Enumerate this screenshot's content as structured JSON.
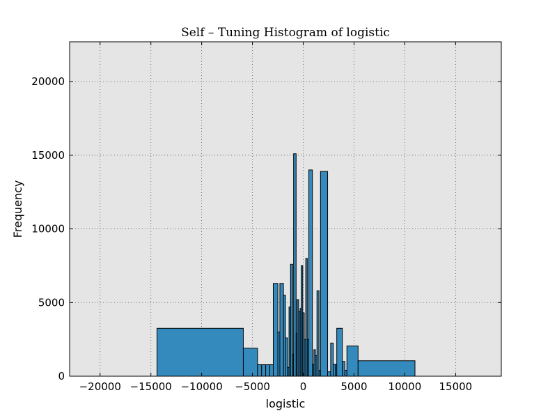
{
  "chart_data": {
    "type": "bar",
    "title": "Self – Tuning Histogram of logistic",
    "xlabel": "logistic",
    "ylabel": "Frequency",
    "xlim": [
      -23000,
      19500
    ],
    "ylim": [
      0,
      22700
    ],
    "xticks": [
      -20000,
      -15000,
      -10000,
      -5000,
      0,
      5000,
      10000,
      15000
    ],
    "xtick_labels": [
      "−20000",
      "−15000",
      "−10000",
      "−5000",
      "0",
      "5000",
      "10000",
      "15000"
    ],
    "yticks": [
      0,
      5000,
      10000,
      15000,
      20000
    ],
    "ytick_labels": [
      "0",
      "5000",
      "10000",
      "15000",
      "20000"
    ],
    "grid": true,
    "colors": {
      "bar_fill": "#348abd",
      "bar_edge": "#000000",
      "plot_bg": "#e5e5e5",
      "grid": "#555555"
    },
    "bins": [
      {
        "x0": -14400,
        "x1": -5900,
        "count": 3250
      },
      {
        "x0": -5900,
        "x1": -4500,
        "count": 1900
      },
      {
        "x0": -4500,
        "x1": -4100,
        "count": 780
      },
      {
        "x0": -4100,
        "x1": -3700,
        "count": 780
      },
      {
        "x0": -3700,
        "x1": -3300,
        "count": 780
      },
      {
        "x0": -3300,
        "x1": -2950,
        "count": 780
      },
      {
        "x0": -2950,
        "x1": -2500,
        "count": 6300
      },
      {
        "x0": -2500,
        "x1": -2300,
        "count": 3000
      },
      {
        "x0": -2300,
        "x1": -1950,
        "count": 6300
      },
      {
        "x0": -1950,
        "x1": -1750,
        "count": 5500
      },
      {
        "x0": -1750,
        "x1": -1550,
        "count": 2600
      },
      {
        "x0": -1550,
        "x1": -1400,
        "count": 600
      },
      {
        "x0": -1400,
        "x1": -1250,
        "count": 4700
      },
      {
        "x0": -1250,
        "x1": -1050,
        "count": 7600
      },
      {
        "x0": -1050,
        "x1": -950,
        "count": 1500
      },
      {
        "x0": -950,
        "x1": -700,
        "count": 15100
      },
      {
        "x0": -700,
        "x1": -600,
        "count": 2900
      },
      {
        "x0": -600,
        "x1": -450,
        "count": 5200
      },
      {
        "x0": -450,
        "x1": -300,
        "count": 4400
      },
      {
        "x0": -300,
        "x1": -200,
        "count": 4600
      },
      {
        "x0": -200,
        "x1": -50,
        "count": 7500
      },
      {
        "x0": -50,
        "x1": 100,
        "count": 4300
      },
      {
        "x0": 100,
        "x1": 250,
        "count": 2500
      },
      {
        "x0": 250,
        "x1": 400,
        "count": 8000
      },
      {
        "x0": 400,
        "x1": 550,
        "count": 2500
      },
      {
        "x0": 550,
        "x1": 900,
        "count": 14000
      },
      {
        "x0": 900,
        "x1": 1050,
        "count": 800
      },
      {
        "x0": 1050,
        "x1": 1200,
        "count": 1800
      },
      {
        "x0": 1200,
        "x1": 1350,
        "count": 1400
      },
      {
        "x0": 1350,
        "x1": 1550,
        "count": 5800
      },
      {
        "x0": 1550,
        "x1": 1700,
        "count": 400
      },
      {
        "x0": 1700,
        "x1": 2400,
        "count": 13900
      },
      {
        "x0": 2400,
        "x1": 2700,
        "count": 300
      },
      {
        "x0": 2700,
        "x1": 2950,
        "count": 2250
      },
      {
        "x0": 2950,
        "x1": 3150,
        "count": 800
      },
      {
        "x0": 3150,
        "x1": 3300,
        "count": 800
      },
      {
        "x0": 3300,
        "x1": 3850,
        "count": 3250
      },
      {
        "x0": 3850,
        "x1": 4100,
        "count": 1000
      },
      {
        "x0": 4100,
        "x1": 4300,
        "count": 400
      },
      {
        "x0": 4300,
        "x1": 5400,
        "count": 2050
      },
      {
        "x0": 5400,
        "x1": 11000,
        "count": 1050
      }
    ]
  }
}
